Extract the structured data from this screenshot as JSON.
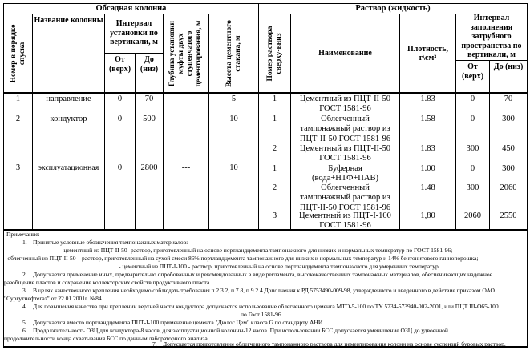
{
  "table": {
    "groups": {
      "casing": "Обсадная колонна",
      "solution": "Раствор (жидкость)"
    },
    "headers": {
      "casing_no": "Номер в порядке спуска",
      "casing_name": "Название колонны",
      "install_interval": "Интервал установки по вертикали, м",
      "from_top": "От (верх)",
      "to_bottom": "До (низ)",
      "stage_collar_depth": "Глубина установки муфты двух ступенчатого цементирования, м",
      "cement_glass_height": "Высота цементного стакана, м",
      "solution_no": "Номер раствора сверху-вниз",
      "solution_name": "Наименование",
      "density": "Плотность, г\\см³",
      "fill_interval": "Интервал заполнения затрубного пространства по вертикали, м",
      "fill_from_top": "От (верх)",
      "fill_to_bottom": "До (низ)"
    },
    "casing_rows": [
      {
        "num": "1",
        "name": "направление",
        "from": "0",
        "to": "70",
        "collar": "---",
        "glass": "5"
      },
      {
        "num": "2",
        "name": "кондуктор",
        "from": "0",
        "to": "500",
        "collar": "---",
        "glass": "10"
      },
      {
        "num": "3",
        "name": "эксплуатационная",
        "from": "0",
        "to": "2800",
        "collar": "---",
        "glass": "10"
      }
    ],
    "solution_rows": [
      {
        "num": "1",
        "name_lines": [
          "Цементный из ПЦТ-II-50",
          "ГОСТ 1581-96"
        ],
        "density": "1.83",
        "from": "0",
        "to": "70"
      },
      {
        "num": "1",
        "name_lines": [
          "Облегченный",
          "тампонажный раствор из",
          "ПЦТ-II-50 ГОСТ 1581-96"
        ],
        "density": "1.58",
        "from": "0",
        "to": "300"
      },
      {
        "num": "2",
        "name_lines": [
          "Цементный из ПЦТ-II-50",
          "ГОСТ 1581-96"
        ],
        "density": "1.83",
        "from": "300",
        "to": "450"
      },
      {
        "num": "1",
        "name_lines": [
          "Буферная",
          "(вода+НТФ+ПАВ)"
        ],
        "density": "1.00",
        "from": "0",
        "to": "300"
      },
      {
        "num": "2",
        "name_lines": [
          "Облегченный",
          "тампонажный раствор из",
          "ПЦТ-II-50 ГОСТ 1581-96"
        ],
        "density": "1.48",
        "from": "300",
        "to": "2060"
      },
      {
        "num": "3",
        "name_lines": [
          "Цементный из ПЦТ-I-100",
          "ГОСТ 1581-96"
        ],
        "density": "1,80",
        "from": "2060",
        "to": "2550"
      }
    ]
  },
  "notes": {
    "lines": [
      {
        "text": "Примечание:"
      },
      {
        "text": "1.    Принятые условные обозначения тампонажных материалов:"
      },
      {
        "text": "- цементный из ПЦТ-II-50 -раствор, приготовленный на основе портландцемента тампонажного для низких и нормальных температур по ГОСТ 1581-96;"
      },
      {
        "text": "- облегченный из ПЦТ-II-50 – раствор, приготовленный на сухой смеси 86% портландцемента тампонажного для низких и нормальных температур и 14% бентонитового глинопорошка;"
      },
      {
        "text": "- цементный из ПЦТ-I-100 - раствор, приготовленный на основе портландцемента тампонажного для умеренных температур."
      },
      {
        "text": "2.    Допускается применение иных, предварительно опробованных и рекомендованных в виде регламента, высококачественных тампонажных материалов, обеспечивающих надежное"
      },
      {
        "text": "разобщение пластов и сохранение коллекторских свойств продуктивного пласта."
      },
      {
        "text": "3.    В целях качественного крепления необходимо соблюдать требования п.2.3.2, п.7.8, п.9.2.4 Дополнения к РД 5753490-009-98, утвержденного и введенного в действие приказом ОАО"
      },
      {
        "text": "\"Сургутнефтегаз\" от 22.01.2001г. №84."
      },
      {
        "text": "4.    Для повышения качества при креплении верхней части кондуктора допускается использование облегченного цемента МТО-5-100 по ТУ 5734-573940-002-2001, или ПЦТ III-О65-100"
      },
      {
        "text": "по Гост 1581-96."
      },
      {
        "text": "5.    Допускается вместо портландцемента ПЦТ-I-100 применение цемента \"Дюлог Цем\" класса G по стандарту АНИ."
      },
      {
        "text": "6.    Продолжительность ОЗЦ для кондуктора-8 часов, для эксплуатационной колонны-12 часов. При использовании БСС допускается уменьшение ОЗЦ до удвоенной"
      },
      {
        "text": "продолжительности конца схватывания БСС по данным лабораторного анализа"
      },
      {
        "text": "7.    Допускается приготовление облегченного тампонажного раствора для цементирования колонн на основе суспензий буровых раствор."
      }
    ]
  }
}
